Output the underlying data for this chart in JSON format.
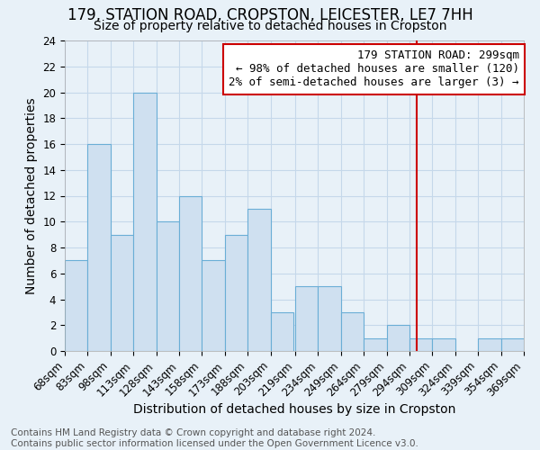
{
  "title1": "179, STATION ROAD, CROPSTON, LEICESTER, LE7 7HH",
  "title2": "Size of property relative to detached houses in Cropston",
  "xlabel": "Distribution of detached houses by size in Cropston",
  "ylabel": "Number of detached properties",
  "footer1": "Contains HM Land Registry data © Crown copyright and database right 2024.",
  "footer2": "Contains public sector information licensed under the Open Government Licence v3.0.",
  "bin_edges": [
    68,
    83,
    98,
    113,
    128,
    143,
    158,
    173,
    188,
    203,
    219,
    234,
    249,
    264,
    279,
    294,
    309,
    324,
    339,
    354,
    369
  ],
  "heights": [
    7,
    16,
    9,
    20,
    10,
    12,
    7,
    9,
    11,
    3,
    5,
    5,
    3,
    1,
    2,
    1,
    1,
    0,
    1,
    1
  ],
  "bar_color": "#cfe0f0",
  "bar_edge_color": "#6aaed6",
  "red_line_x": 299,
  "annotation_title": "179 STATION ROAD: 299sqm",
  "annotation_line1": "← 98% of detached houses are smaller (120)",
  "annotation_line2": "2% of semi-detached houses are larger (3) →",
  "annotation_box_facecolor": "#ffffff",
  "annotation_box_edgecolor": "#cc0000",
  "red_line_color": "#cc0000",
  "ylim": [
    0,
    24
  ],
  "yticks": [
    0,
    2,
    4,
    6,
    8,
    10,
    12,
    14,
    16,
    18,
    20,
    22,
    24
  ],
  "grid_color": "#c5d8ea",
  "background_color": "#e8f1f8",
  "title_fontsize": 12,
  "subtitle_fontsize": 10,
  "axis_label_fontsize": 10,
  "tick_fontsize": 8.5,
  "annotation_fontsize": 9,
  "footer_fontsize": 7.5
}
